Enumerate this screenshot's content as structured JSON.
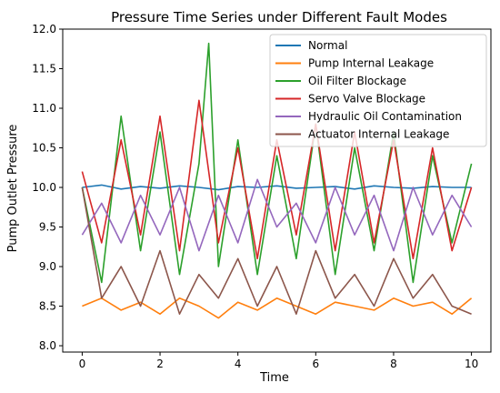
{
  "chart_data": {
    "type": "line",
    "title": "Pressure Time Series under Different Fault Modes",
    "xlabel": "Time",
    "ylabel": "Pump Outlet Pressure",
    "xlim": [
      -0.5,
      10.5
    ],
    "ylim": [
      7.92,
      12.0
    ],
    "xticks": [
      0,
      2,
      4,
      6,
      8,
      10
    ],
    "xtick_labels": [
      "0",
      "2",
      "4",
      "6",
      "8",
      "10"
    ],
    "yticks": [
      8.0,
      8.5,
      9.0,
      9.5,
      10.0,
      10.5,
      11.0,
      11.5,
      12.0
    ],
    "ytick_labels": [
      "8.0",
      "8.5",
      "9.0",
      "9.5",
      "10.0",
      "10.5",
      "11.0",
      "11.5",
      "12.0"
    ],
    "grid": false,
    "legend_position": "top-right",
    "series": [
      {
        "name": "Normal",
        "color": "#1f77b4",
        "x": [
          0,
          0.5,
          1,
          1.5,
          2,
          2.5,
          3,
          3.5,
          4,
          4.5,
          5,
          5.5,
          6,
          6.5,
          7,
          7.5,
          8,
          8.5,
          9,
          9.5,
          10
        ],
        "y": [
          10.0,
          10.03,
          9.98,
          10.01,
          9.99,
          10.02,
          10.0,
          9.97,
          10.01,
          10.0,
          10.02,
          9.99,
          10.0,
          10.01,
          9.98,
          10.02,
          10.0,
          9.99,
          10.01,
          10.0,
          10.0
        ]
      },
      {
        "name": "Pump Internal Leakage",
        "color": "#ff7f0e",
        "x": [
          0,
          0.5,
          1,
          1.5,
          2,
          2.5,
          3,
          3.5,
          4,
          4.5,
          5,
          5.5,
          6,
          6.5,
          7,
          7.5,
          8,
          8.5,
          9,
          9.5,
          10
        ],
        "y": [
          8.5,
          8.6,
          8.45,
          8.55,
          8.4,
          8.6,
          8.5,
          8.35,
          8.55,
          8.45,
          8.6,
          8.5,
          8.4,
          8.55,
          8.5,
          8.45,
          8.6,
          8.5,
          8.55,
          8.4,
          8.6
        ]
      },
      {
        "name": "Oil Filter Blockage",
        "color": "#2ca02c",
        "x": [
          0,
          0.5,
          1,
          1.5,
          2,
          2.5,
          3,
          3.25,
          3.5,
          4,
          4.5,
          5,
          5.5,
          6,
          6.5,
          7,
          7.5,
          8,
          8.5,
          9,
          9.5,
          10
        ],
        "y": [
          10.0,
          8.8,
          10.9,
          9.2,
          10.7,
          8.9,
          10.3,
          11.82,
          9.0,
          10.6,
          8.9,
          10.4,
          9.1,
          10.8,
          8.9,
          10.5,
          9.2,
          10.7,
          8.8,
          10.4,
          9.3,
          10.3
        ]
      },
      {
        "name": "Servo Valve Blockage",
        "color": "#d62728",
        "x": [
          0,
          0.5,
          1,
          1.5,
          2,
          2.5,
          3,
          3.5,
          4,
          4.5,
          5,
          5.5,
          6,
          6.5,
          7,
          7.5,
          8,
          8.5,
          9,
          9.5,
          10
        ],
        "y": [
          10.2,
          9.3,
          10.6,
          9.4,
          10.9,
          9.2,
          11.1,
          9.3,
          10.5,
          9.1,
          10.6,
          9.4,
          10.8,
          9.2,
          10.7,
          9.3,
          10.6,
          9.1,
          10.5,
          9.2,
          10.0
        ]
      },
      {
        "name": "Hydraulic Oil Contamination",
        "color": "#9467bd",
        "x": [
          0,
          0.5,
          1,
          1.5,
          2,
          2.5,
          3,
          3.5,
          4,
          4.5,
          5,
          5.5,
          6,
          6.5,
          7,
          7.5,
          8,
          8.5,
          9,
          9.5,
          10
        ],
        "y": [
          9.4,
          9.8,
          9.3,
          9.9,
          9.4,
          10.0,
          9.2,
          9.9,
          9.3,
          10.1,
          9.5,
          9.8,
          9.3,
          10.0,
          9.4,
          9.9,
          9.2,
          10.0,
          9.4,
          9.9,
          9.5
        ]
      },
      {
        "name": "Actuator Internal Leakage",
        "color": "#8c564b",
        "x": [
          0,
          0.5,
          1,
          1.5,
          2,
          2.5,
          3,
          3.5,
          4,
          4.5,
          5,
          5.5,
          6,
          6.5,
          7,
          7.5,
          8,
          8.5,
          9,
          9.5,
          10
        ],
        "y": [
          10.0,
          8.6,
          9.0,
          8.5,
          9.2,
          8.4,
          8.9,
          8.6,
          9.1,
          8.5,
          9.0,
          8.4,
          9.2,
          8.6,
          8.9,
          8.5,
          9.1,
          8.6,
          8.9,
          8.5,
          8.4
        ]
      }
    ]
  }
}
